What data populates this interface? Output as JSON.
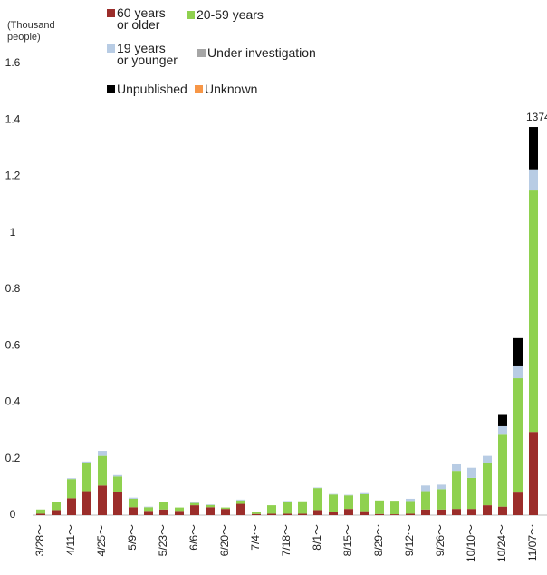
{
  "chart_data": {
    "type": "stacked_bar",
    "y_axis_label": "(Thousand people)",
    "categories": [
      "3/28～",
      null,
      "4/11～",
      null,
      "4/25～",
      null,
      "5/9～",
      null,
      "5/23～",
      null,
      "6/6～",
      null,
      "6/20～",
      null,
      "7/4～",
      null,
      "7/18～",
      null,
      "8/1～",
      null,
      "8/15～",
      null,
      "8/29～",
      null,
      "9/12～",
      null,
      "9/26～",
      null,
      "10/10～",
      null,
      "10/24～",
      null,
      "11/07～"
    ],
    "series": [
      {
        "name": "60 years or older",
        "color": "#9b2d2a",
        "values": [
          0.005,
          0.018,
          0.06,
          0.085,
          0.105,
          0.082,
          0.028,
          0.015,
          0.02,
          0.015,
          0.035,
          0.028,
          0.022,
          0.04,
          0.004,
          0.005,
          0.005,
          0.005,
          0.018,
          0.01,
          0.022,
          0.014,
          0.004,
          0.003,
          0.005,
          0.02,
          0.02,
          0.022,
          0.022,
          0.035,
          0.03,
          0.08,
          0.295
        ]
      },
      {
        "name": "20-59 years",
        "color": "#8fd14f",
        "values": [
          0.015,
          0.028,
          0.068,
          0.1,
          0.105,
          0.055,
          0.03,
          0.013,
          0.025,
          0.012,
          0.008,
          0.008,
          0.005,
          0.012,
          0.007,
          0.03,
          0.043,
          0.044,
          0.078,
          0.063,
          0.048,
          0.06,
          0.048,
          0.048,
          0.045,
          0.065,
          0.072,
          0.135,
          0.11,
          0.15,
          0.255,
          0.405,
          0.855
        ]
      },
      {
        "name": "19 years or younger",
        "color": "#b8cce4",
        "values": [
          0,
          0.002,
          0.003,
          0.005,
          0.018,
          0.005,
          0.004,
          0.002,
          0.003,
          0,
          0.002,
          0.002,
          0,
          0.003,
          0,
          0,
          0.002,
          0,
          0.002,
          0.002,
          0.002,
          0.004,
          0,
          0,
          0.008,
          0.02,
          0.016,
          0.023,
          0.036,
          0.025,
          0.03,
          0.042,
          0.075
        ]
      },
      {
        "name": "Under investigation",
        "color": "#a6a6a6",
        "values": [
          0,
          0,
          0,
          0,
          0,
          0,
          0,
          0,
          0,
          0,
          0,
          0,
          0,
          0,
          0,
          0,
          0,
          0,
          0,
          0,
          0,
          0,
          0,
          0,
          0,
          0,
          0,
          0,
          0,
          0,
          0,
          0,
          0
        ]
      },
      {
        "name": "Unpublished",
        "color": "#000000",
        "values": [
          0,
          0,
          0,
          0,
          0,
          0,
          0,
          0,
          0,
          0,
          0,
          0,
          0,
          0,
          0,
          0,
          0,
          0,
          0,
          0,
          0,
          0,
          0,
          0,
          0,
          0,
          0,
          0,
          0,
          0,
          0.04,
          0.1,
          0.15
        ]
      },
      {
        "name": "Unknown",
        "color": "#f79646",
        "values": [
          0,
          0,
          0,
          0,
          0,
          0,
          0,
          0,
          0,
          0,
          0,
          0,
          0,
          0,
          0,
          0,
          0,
          0,
          0,
          0,
          0,
          0,
          0,
          0,
          0,
          0,
          0,
          0,
          0,
          0,
          0,
          0,
          0
        ]
      }
    ],
    "annotation": "1374",
    "ylim": [
      0,
      1.6
    ],
    "yticks": [
      0,
      0.2,
      0.4,
      0.6,
      0.8,
      1,
      1.2,
      1.4,
      1.6
    ]
  }
}
